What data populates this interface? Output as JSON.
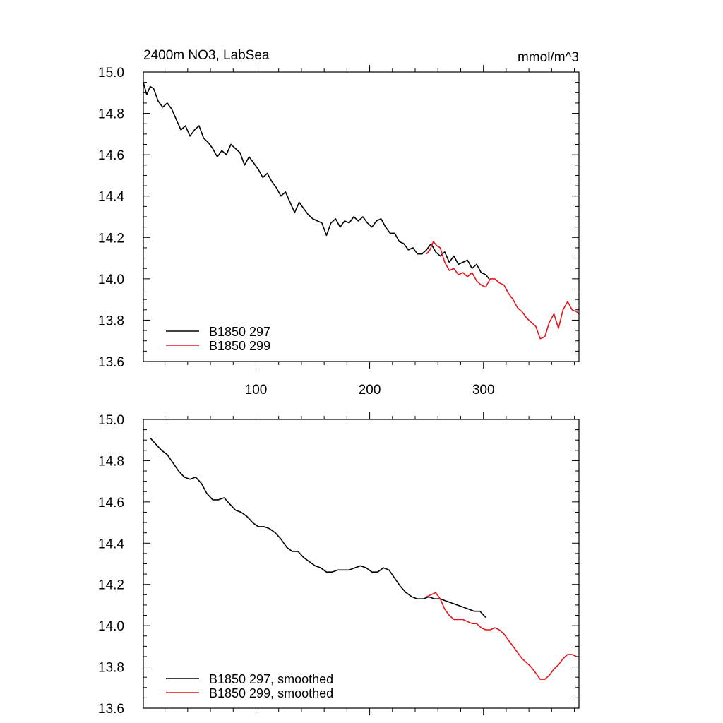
{
  "colors": {
    "series_297": "#000000",
    "series_299": "#e8141c",
    "axis": "#000000",
    "background": "#ffffff"
  },
  "chart_data": [
    {
      "type": "line",
      "title": "2400m NO3, LabSea",
      "units": "mmol/m^3",
      "xlim": [
        1,
        384
      ],
      "ylim": [
        13.6,
        15.0
      ],
      "x_ticks": [
        100,
        200,
        300
      ],
      "y_ticks": [
        "13.6",
        "13.8",
        "14.0",
        "14.2",
        "14.4",
        "14.6",
        "14.8",
        "15.0"
      ],
      "grid": false,
      "legend_position": "bottom-left",
      "series": [
        {
          "name": "B1850 297",
          "color": "#000000",
          "x": [
            1,
            4,
            7,
            10,
            14,
            18,
            22,
            26,
            30,
            34,
            38,
            42,
            46,
            50,
            54,
            58,
            62,
            66,
            70,
            74,
            78,
            82,
            86,
            90,
            94,
            98,
            102,
            106,
            110,
            114,
            118,
            122,
            126,
            130,
            134,
            138,
            142,
            146,
            150,
            154,
            158,
            162,
            166,
            170,
            174,
            178,
            182,
            186,
            190,
            194,
            198,
            202,
            206,
            210,
            214,
            218,
            222,
            226,
            230,
            234,
            238,
            242,
            246,
            250,
            254,
            258,
            262,
            266,
            270,
            274,
            278,
            282,
            286,
            290,
            294,
            298,
            302,
            305
          ],
          "y": [
            14.95,
            14.89,
            14.93,
            14.92,
            14.86,
            14.83,
            14.85,
            14.82,
            14.77,
            14.72,
            14.74,
            14.69,
            14.72,
            14.74,
            14.68,
            14.66,
            14.63,
            14.59,
            14.62,
            14.6,
            14.65,
            14.63,
            14.61,
            14.55,
            14.59,
            14.56,
            14.53,
            14.49,
            14.51,
            14.47,
            14.44,
            14.4,
            14.42,
            14.37,
            14.32,
            14.37,
            14.34,
            14.31,
            14.29,
            14.28,
            14.27,
            14.21,
            14.27,
            14.29,
            14.25,
            14.28,
            14.27,
            14.3,
            14.28,
            14.3,
            14.27,
            14.25,
            14.28,
            14.29,
            14.25,
            14.22,
            14.22,
            14.18,
            14.17,
            14.14,
            14.15,
            14.12,
            14.12,
            14.14,
            14.17,
            14.13,
            14.11,
            14.13,
            14.08,
            14.11,
            14.07,
            14.08,
            14.09,
            14.05,
            14.07,
            14.03,
            14.02,
            14.0
          ]
        },
        {
          "name": "B1850 299",
          "color": "#e8141c",
          "x": [
            250,
            253,
            256,
            259,
            262,
            266,
            270,
            274,
            278,
            282,
            286,
            290,
            294,
            298,
            302,
            306,
            310,
            314,
            318,
            322,
            326,
            330,
            334,
            338,
            342,
            346,
            350,
            354,
            358,
            362,
            366,
            370,
            374,
            378,
            382,
            384
          ],
          "y": [
            14.12,
            14.14,
            14.18,
            14.16,
            14.15,
            14.08,
            14.04,
            14.05,
            14.02,
            14.03,
            14.01,
            14.03,
            13.99,
            13.97,
            13.96,
            14.0,
            14.0,
            13.98,
            13.97,
            13.93,
            13.9,
            13.86,
            13.84,
            13.81,
            13.79,
            13.77,
            13.71,
            13.72,
            13.79,
            13.83,
            13.76,
            13.85,
            13.89,
            13.85,
            13.84,
            13.83
          ]
        }
      ]
    },
    {
      "type": "line",
      "xlim": [
        1,
        384
      ],
      "ylim": [
        13.6,
        15.0
      ],
      "x_ticks": [
        100,
        200,
        300
      ],
      "y_ticks": [
        "13.6",
        "13.8",
        "14.0",
        "14.2",
        "14.4",
        "14.6",
        "14.8",
        "15.0"
      ],
      "grid": false,
      "legend_position": "bottom-left",
      "series": [
        {
          "name": "B1850 297, smoothed",
          "color": "#000000",
          "x": [
            7,
            12,
            17,
            22,
            27,
            32,
            37,
            42,
            47,
            52,
            57,
            62,
            67,
            72,
            77,
            82,
            87,
            92,
            97,
            102,
            107,
            112,
            117,
            122,
            127,
            132,
            137,
            142,
            147,
            152,
            157,
            162,
            167,
            172,
            177,
            182,
            187,
            192,
            197,
            202,
            207,
            212,
            217,
            222,
            227,
            232,
            237,
            242,
            247,
            252,
            257,
            262,
            267,
            272,
            277,
            282,
            287,
            292,
            297,
            302
          ],
          "y": [
            14.91,
            14.88,
            14.85,
            14.83,
            14.79,
            14.75,
            14.72,
            14.71,
            14.72,
            14.69,
            14.64,
            14.61,
            14.61,
            14.62,
            14.59,
            14.56,
            14.55,
            14.53,
            14.5,
            14.48,
            14.48,
            14.47,
            14.45,
            14.42,
            14.38,
            14.36,
            14.36,
            14.33,
            14.31,
            14.29,
            14.28,
            14.26,
            14.26,
            14.27,
            14.27,
            14.27,
            14.28,
            14.29,
            14.28,
            14.26,
            14.26,
            14.28,
            14.27,
            14.23,
            14.19,
            14.16,
            14.14,
            14.13,
            14.13,
            14.14,
            14.13,
            14.13,
            14.12,
            14.11,
            14.1,
            14.09,
            14.08,
            14.07,
            14.07,
            14.04
          ]
        },
        {
          "name": "B1850 299, smoothed",
          "color": "#e8141c",
          "x": [
            250,
            254,
            258,
            262,
            266,
            270,
            274,
            278,
            282,
            286,
            290,
            294,
            298,
            302,
            306,
            310,
            314,
            318,
            322,
            326,
            330,
            334,
            338,
            342,
            346,
            350,
            354,
            358,
            362,
            366,
            370,
            374,
            378,
            382
          ],
          "y": [
            14.14,
            14.15,
            14.16,
            14.13,
            14.08,
            14.05,
            14.03,
            14.03,
            14.03,
            14.02,
            14.01,
            14.01,
            13.99,
            13.98,
            13.98,
            13.99,
            13.98,
            13.96,
            13.93,
            13.9,
            13.87,
            13.84,
            13.82,
            13.8,
            13.77,
            13.74,
            13.74,
            13.76,
            13.79,
            13.81,
            13.84,
            13.86,
            13.86,
            13.85
          ]
        }
      ]
    }
  ]
}
